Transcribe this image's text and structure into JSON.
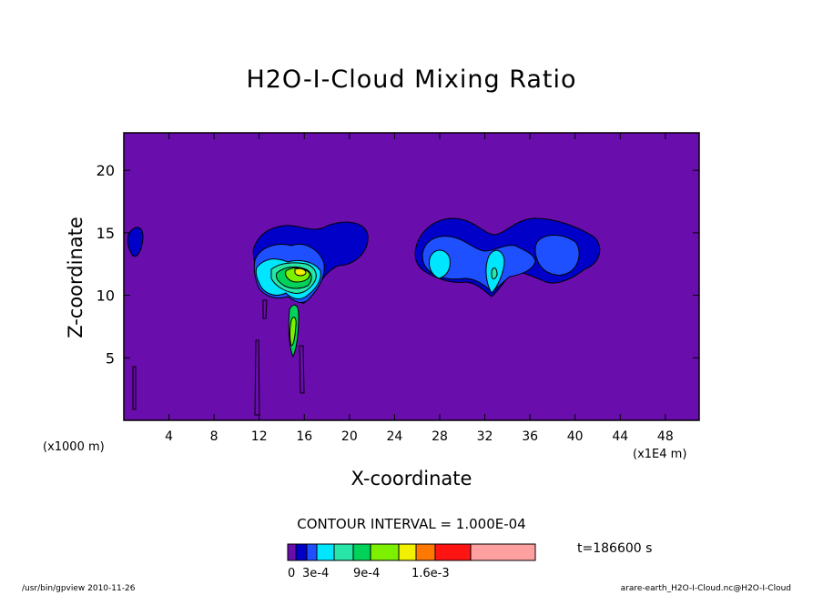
{
  "chart_data": {
    "type": "contour",
    "title": "H2O-I-Cloud Mixing Ratio",
    "xlabel": "X-coordinate",
    "ylabel": "Z-coordinate",
    "x_unit_left": "(x1000 m)",
    "x_unit_right": "(x1E4 m)",
    "xlim": [
      0,
      51
    ],
    "ylim": [
      0,
      23
    ],
    "x_ticks": [
      4,
      8,
      12,
      16,
      20,
      24,
      28,
      32,
      36,
      40,
      44,
      48
    ],
    "y_ticks": [
      5,
      10,
      15,
      20
    ],
    "contour_interval_label": "CONTOUR INTERVAL = 1.000E-04",
    "time_label": "t=186600 s",
    "colorbar": {
      "colors": [
        "#6a0dad",
        "#0000c8",
        "#1e50ff",
        "#00e6ff",
        "#28e6a8",
        "#00d25a",
        "#7df000",
        "#f0f000",
        "#ff7800",
        "#ff1414",
        "#ffa0a0"
      ],
      "labels": [
        "0",
        "3e-4",
        "9e-4",
        "1.6e-3"
      ]
    },
    "background_color": "#6a0dad",
    "cloud_regions": [
      {
        "name": "left-edge-blob",
        "x_center": 1.0,
        "z_center": 14.3,
        "max_level": "low"
      },
      {
        "name": "cloud-center-left",
        "x_center": 16,
        "z_center": 12.5,
        "max_level": "1.6e-3"
      },
      {
        "name": "cloud-right",
        "x_center": 34,
        "z_center": 13.5,
        "max_level": "3e-4"
      }
    ]
  },
  "footer": {
    "left": "/usr/bin/gpview   2010-11-26",
    "right": "arare-earth_H2O-I-Cloud.nc@H2O-I-Cloud"
  }
}
